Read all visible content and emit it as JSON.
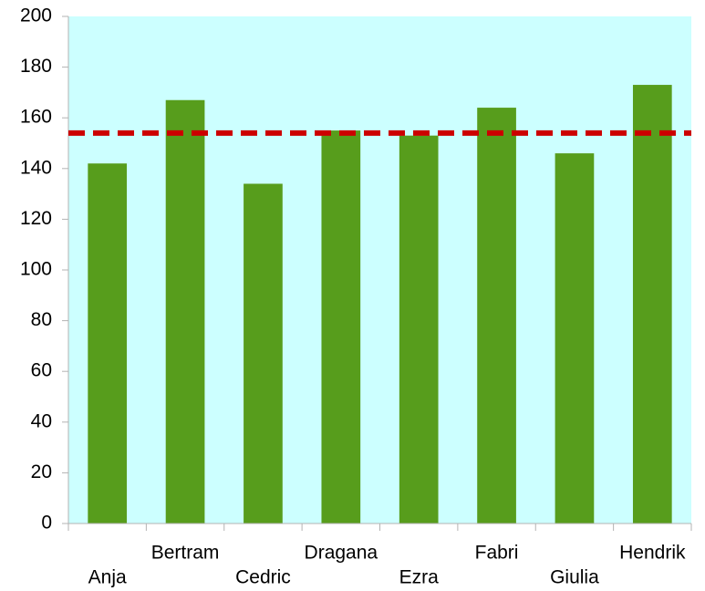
{
  "chart_data": {
    "type": "bar",
    "categories": [
      "Anja",
      "Bertram",
      "Cedric",
      "Dragana",
      "Ezra",
      "Fabri",
      "Giulia",
      "Hendrik"
    ],
    "values": [
      142,
      167,
      134,
      155,
      153,
      164,
      146,
      173
    ],
    "color": "#579d1c",
    "plot_background": "#ccffff",
    "ylim": [
      0,
      200
    ],
    "yticks": [
      0,
      20,
      40,
      60,
      80,
      100,
      120,
      140,
      160,
      180,
      200
    ],
    "grid": false,
    "reference_line": {
      "value": 154,
      "color": "#cc0000"
    }
  }
}
